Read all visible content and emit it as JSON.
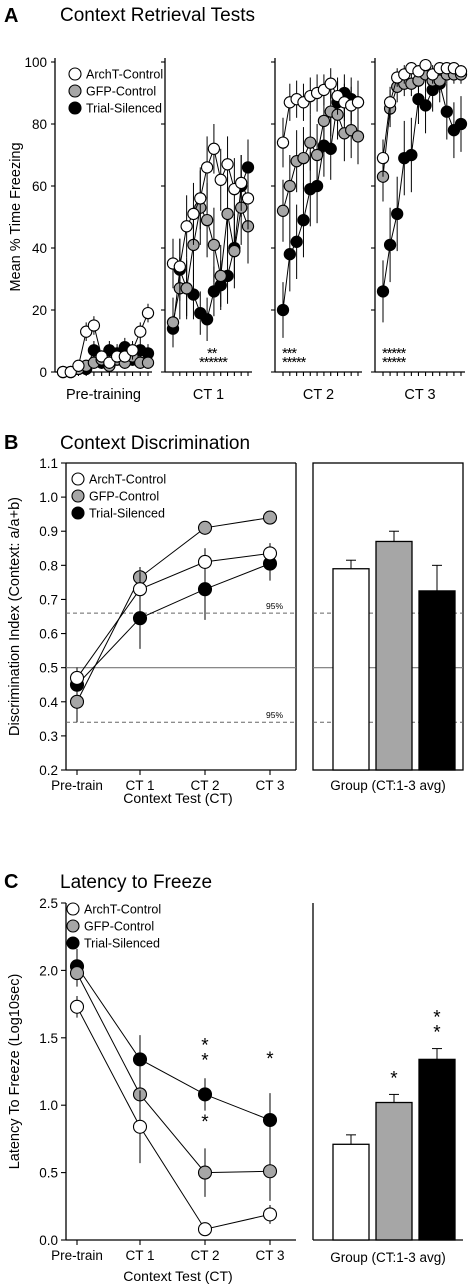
{
  "figure_colors": {
    "white": "#ffffff",
    "grey": "#a6a6a6",
    "black": "#000000"
  },
  "panels": {
    "A": {
      "letter": "A",
      "title": "Context Retrieval Tests"
    },
    "B": {
      "letter": "B",
      "title": "Context Discrimination"
    },
    "C": {
      "letter": "C",
      "title": "Latency to Freeze"
    }
  },
  "chart_data": [
    {
      "type": "line",
      "panel": "A",
      "ylabel": "Mean % Time Freezing",
      "ylim": [
        0,
        100
      ],
      "yticks": [
        0,
        20,
        40,
        60,
        80,
        100
      ],
      "legend": {
        "position": "top-left",
        "entries": [
          "ArchT-Control",
          "GFP-Control",
          "Trial-Silenced"
        ]
      },
      "segments": [
        {
          "label": "Pre-training",
          "x": [
            1,
            2,
            3,
            4,
            5,
            6,
            7,
            8,
            9,
            10,
            11,
            12
          ],
          "series": [
            {
              "name": "ArchT-Control",
              "values": [
                0,
                0,
                2,
                13,
                15,
                5,
                3,
                5,
                5,
                7,
                13,
                19
              ],
              "err": [
                0,
                0,
                1,
                3,
                3,
                2,
                2,
                2,
                2,
                3,
                3,
                3
              ]
            },
            {
              "name": "GFP-Control",
              "values": [
                0,
                0,
                1,
                2,
                3,
                4,
                2,
                4,
                3,
                5,
                3,
                3
              ],
              "err": [
                0,
                0,
                1,
                1,
                2,
                2,
                1,
                2,
                2,
                2,
                2,
                2
              ]
            },
            {
              "name": "Trial-Silenced",
              "values": [
                0,
                0,
                1,
                1,
                7,
                3,
                7,
                6,
                8,
                4,
                7,
                6
              ],
              "err": [
                0,
                0,
                1,
                1,
                3,
                2,
                3,
                3,
                3,
                2,
                3,
                3
              ]
            }
          ]
        },
        {
          "label": "CT 1",
          "x": [
            1,
            2,
            3,
            4,
            5,
            6,
            7,
            8,
            9,
            10,
            11,
            12
          ],
          "series": [
            {
              "name": "ArchT-Control",
              "values": [
                35,
                34,
                47,
                51,
                56,
                66,
                72,
                62,
                67,
                59,
                61,
                56
              ],
              "err": [
                8,
                9,
                10,
                10,
                10,
                10,
                8,
                10,
                9,
                10,
                9,
                10
              ]
            },
            {
              "name": "GFP-Control",
              "values": [
                16,
                27,
                27,
                41,
                53,
                49,
                41,
                31,
                51,
                39,
                53,
                47
              ],
              "err": [
                8,
                10,
                10,
                12,
                12,
                12,
                12,
                10,
                12,
                12,
                12,
                12
              ]
            },
            {
              "name": "Trial-Silenced",
              "values": [
                14,
                33,
                27,
                25,
                19,
                17,
                26,
                28,
                31,
                40,
                60,
                66
              ],
              "err": [
                6,
                10,
                9,
                8,
                7,
                7,
                8,
                8,
                9,
                10,
                10,
                9
              ]
            }
          ],
          "sig_rows": [
            "**",
            "******"
          ]
        },
        {
          "label": "CT 2",
          "x": [
            1,
            2,
            3,
            4,
            5,
            6,
            7,
            8,
            9,
            10,
            11,
            12
          ],
          "series": [
            {
              "name": "ArchT-Control",
              "values": [
                74,
                87,
                88,
                87,
                89,
                90,
                91,
                93,
                89,
                87,
                86,
                87
              ],
              "err": [
                8,
                6,
                6,
                6,
                6,
                6,
                5,
                5,
                6,
                6,
                6,
                6
              ]
            },
            {
              "name": "GFP-Control",
              "values": [
                52,
                60,
                68,
                69,
                74,
                70,
                81,
                84,
                83,
                77,
                78,
                76
              ],
              "err": [
                10,
                10,
                10,
                10,
                9,
                10,
                8,
                8,
                8,
                9,
                9,
                9
              ]
            },
            {
              "name": "Trial-Silenced",
              "values": [
                20,
                38,
                42,
                49,
                59,
                60,
                73,
                72,
                87,
                90,
                88,
                87
              ],
              "err": [
                9,
                12,
                12,
                12,
                12,
                12,
                10,
                10,
                7,
                6,
                7,
                7
              ]
            }
          ],
          "sig_rows": [
            "***",
            "*****"
          ]
        },
        {
          "label": "CT 3",
          "x": [
            1,
            2,
            3,
            4,
            5,
            6,
            7,
            8,
            9,
            10,
            11,
            12
          ],
          "series": [
            {
              "name": "ArchT-Control",
              "values": [
                69,
                87,
                95,
                96,
                98,
                97,
                99,
                96,
                98,
                98,
                98,
                97
              ],
              "err": [
                6,
                5,
                3,
                3,
                2,
                2,
                1,
                3,
                2,
                2,
                2,
                2
              ]
            },
            {
              "name": "GFP-Control",
              "values": [
                63,
                85,
                92,
                93,
                93,
                94,
                96,
                94,
                94,
                96,
                96,
                96
              ],
              "err": [
                8,
                6,
                5,
                4,
                4,
                4,
                3,
                4,
                4,
                3,
                3,
                3
              ]
            },
            {
              "name": "Trial-Silenced",
              "values": [
                26,
                41,
                51,
                69,
                70,
                88,
                86,
                91,
                93,
                84,
                78,
                80
              ],
              "err": [
                10,
                12,
                12,
                12,
                12,
                8,
                9,
                7,
                6,
                9,
                9,
                9
              ]
            }
          ],
          "sig_rows": [
            "*****",
            "*****"
          ]
        }
      ]
    },
    {
      "type": "line",
      "panel": "B",
      "xlabel": "Context Test (CT)",
      "ylabel": "Discrimination Index (Context: a/a+b)",
      "categories": [
        "Pre-train",
        "CT 1",
        "CT 2",
        "CT 3"
      ],
      "ylim": [
        0.2,
        1.1
      ],
      "yticks": [
        0.2,
        0.3,
        0.4,
        0.5,
        0.6,
        0.7,
        0.8,
        0.9,
        1.0,
        1.1
      ],
      "reference_lines": [
        {
          "value": 0.66,
          "style": "dashed",
          "label": "95%"
        },
        {
          "value": 0.5,
          "style": "solid",
          "label": ""
        },
        {
          "value": 0.34,
          "style": "dashed",
          "label": "95%"
        }
      ],
      "legend": {
        "position": "top-left",
        "entries": [
          "ArchT-Control",
          "GFP-Control",
          "Trial-Silenced"
        ]
      },
      "series": [
        {
          "name": "ArchT-Control",
          "values": [
            0.47,
            0.73,
            0.81,
            0.835
          ],
          "err": [
            0.03,
            0.05,
            0.04,
            0.03
          ]
        },
        {
          "name": "GFP-Control",
          "values": [
            0.4,
            0.765,
            0.91,
            0.94
          ],
          "err": [
            0.06,
            0.03,
            0.01,
            0.01
          ]
        },
        {
          "name": "Trial-Silenced",
          "values": [
            0.45,
            0.645,
            0.73,
            0.805
          ],
          "err": [
            0.05,
            0.09,
            0.09,
            0.05
          ]
        }
      ]
    },
    {
      "type": "bar",
      "panel": "B",
      "xlabel": "Group (CT:1-3 avg)",
      "ylim": [
        0.2,
        1.1
      ],
      "reference_lines": [
        {
          "value": 0.66,
          "style": "dashed",
          "label": "95%"
        },
        {
          "value": 0.5,
          "style": "solid",
          "label": ""
        },
        {
          "value": 0.34,
          "style": "dashed",
          "label": "95%"
        }
      ],
      "categories": [
        "ArchT-Control",
        "GFP-Control",
        "Trial-Silenced"
      ],
      "values": [
        0.79,
        0.87,
        0.725
      ],
      "err": [
        0.025,
        0.03,
        0.075
      ],
      "colors": [
        "#ffffff",
        "#a6a6a6",
        "#000000"
      ]
    },
    {
      "type": "line",
      "panel": "C",
      "xlabel": "Context Test (CT)",
      "ylabel": "Latency To Freeze (Log10sec)",
      "categories": [
        "Pre-train",
        "CT 1",
        "CT 2",
        "CT 3"
      ],
      "ylim": [
        0,
        2.5
      ],
      "yticks": [
        0.0,
        0.5,
        1.0,
        1.5,
        2.0,
        2.5
      ],
      "legend": {
        "position": "top-left",
        "entries": [
          "ArchT-Control",
          "GFP-Control",
          "Trial-Silenced"
        ]
      },
      "series": [
        {
          "name": "ArchT-Control",
          "values": [
            1.73,
            0.84,
            0.08,
            0.19
          ],
          "err": [
            0.08,
            0.27,
            0.04,
            0.07
          ]
        },
        {
          "name": "GFP-Control",
          "values": [
            1.98,
            1.08,
            0.5,
            0.51
          ],
          "err": [
            0.1,
            0.3,
            0.18,
            0.22
          ]
        },
        {
          "name": "Trial-Silenced",
          "values": [
            2.03,
            1.34,
            1.08,
            0.89
          ],
          "err": [
            0.13,
            0.18,
            0.12,
            0.2
          ]
        }
      ],
      "annotations": [
        {
          "category": "CT 2",
          "y": 1.4,
          "text": "**"
        },
        {
          "category": "CT 2",
          "y": 0.83,
          "text": "*"
        },
        {
          "category": "CT 3",
          "y": 1.3,
          "text": "*"
        }
      ]
    },
    {
      "type": "bar",
      "panel": "C",
      "xlabel": "Group (CT:1-3 avg)",
      "ylim": [
        0,
        2.5
      ],
      "categories": [
        "ArchT-Control",
        "GFP-Control",
        "Trial-Silenced"
      ],
      "values": [
        0.71,
        1.02,
        1.34
      ],
      "err": [
        0.07,
        0.06,
        0.08
      ],
      "colors": [
        "#ffffff",
        "#a6a6a6",
        "#000000"
      ],
      "annotations": [
        {
          "category": "GFP-Control",
          "text": "*"
        },
        {
          "category": "Trial-Silenced",
          "text": "**"
        }
      ]
    }
  ]
}
